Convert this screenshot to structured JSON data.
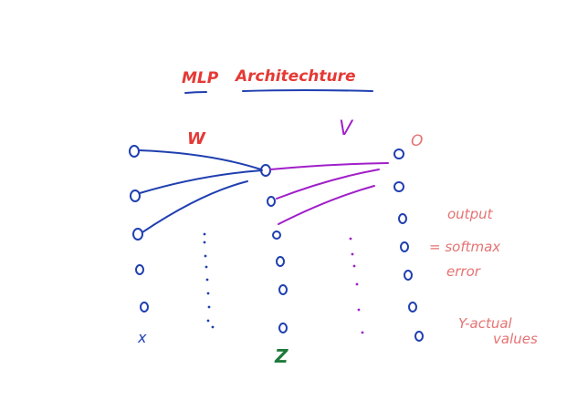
{
  "title": {
    "part1": "MLP",
    "part2": "Architechture"
  },
  "labels": {
    "w": "W",
    "v": "V",
    "o": "O",
    "z": "Z",
    "x": "x",
    "output": "output",
    "softmax": "= softmax",
    "error": "error",
    "y_actual": "Y-actual",
    "values": "values"
  },
  "colors": {
    "red": "#e53935",
    "salmon": "#e57373",
    "blue": "#1f3fb0",
    "purple": "#a01fc9",
    "green": "#1e7a3a"
  }
}
